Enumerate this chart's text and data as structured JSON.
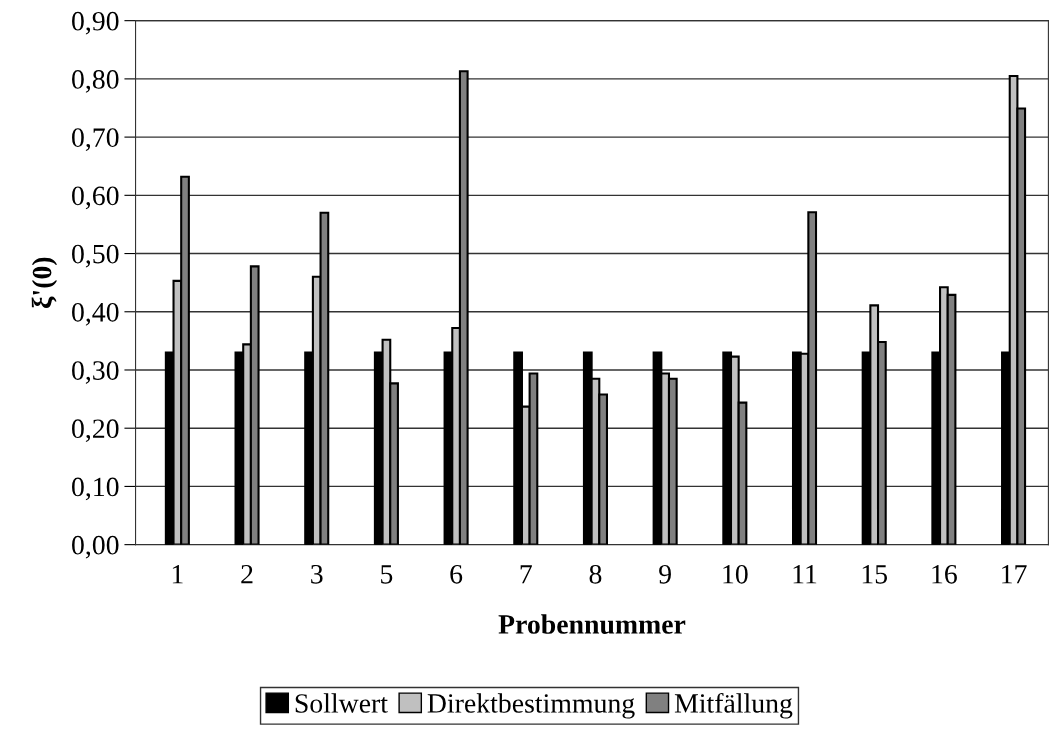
{
  "chart_data": {
    "type": "bar",
    "xlabel": "Probennummer",
    "ylabel": "ξ'(0)",
    "categories": [
      "1",
      "2",
      "3",
      "5",
      "6",
      "7",
      "8",
      "9",
      "10",
      "11",
      "15",
      "16",
      "17"
    ],
    "series": [
      {
        "name": "Sollwert",
        "color": "#000000",
        "values": [
          0.33,
          0.33,
          0.33,
          0.33,
          0.33,
          0.33,
          0.33,
          0.33,
          0.33,
          0.33,
          0.33,
          0.33,
          0.33
        ]
      },
      {
        "name": "Direktbestimmung",
        "color": "#c0c0c0",
        "values": [
          0.453,
          0.344,
          0.46,
          0.352,
          0.372,
          0.237,
          0.285,
          0.294,
          0.323,
          0.328,
          0.411,
          0.442,
          0.805
        ]
      },
      {
        "name": "Mitfällung",
        "color": "#808080",
        "values": [
          0.632,
          0.478,
          0.57,
          0.277,
          0.813,
          0.294,
          0.258,
          0.285,
          0.244,
          0.571,
          0.348,
          0.429,
          0.749
        ]
      }
    ],
    "ylim": [
      0,
      0.9
    ],
    "yticks": [
      {
        "value": 0,
        "label": "0,00"
      },
      {
        "value": 0.1,
        "label": "0,10"
      },
      {
        "value": 0.2,
        "label": "0,20"
      },
      {
        "value": 0.3,
        "label": "0,30"
      },
      {
        "value": 0.4,
        "label": "0,40"
      },
      {
        "value": 0.5,
        "label": "0,50"
      },
      {
        "value": 0.6,
        "label": "0,60"
      },
      {
        "value": 0.7,
        "label": "0,70"
      },
      {
        "value": 0.8,
        "label": "0,80"
      },
      {
        "value": 0.9,
        "label": "0,90"
      }
    ],
    "grid": "y",
    "legend": "bottom"
  }
}
